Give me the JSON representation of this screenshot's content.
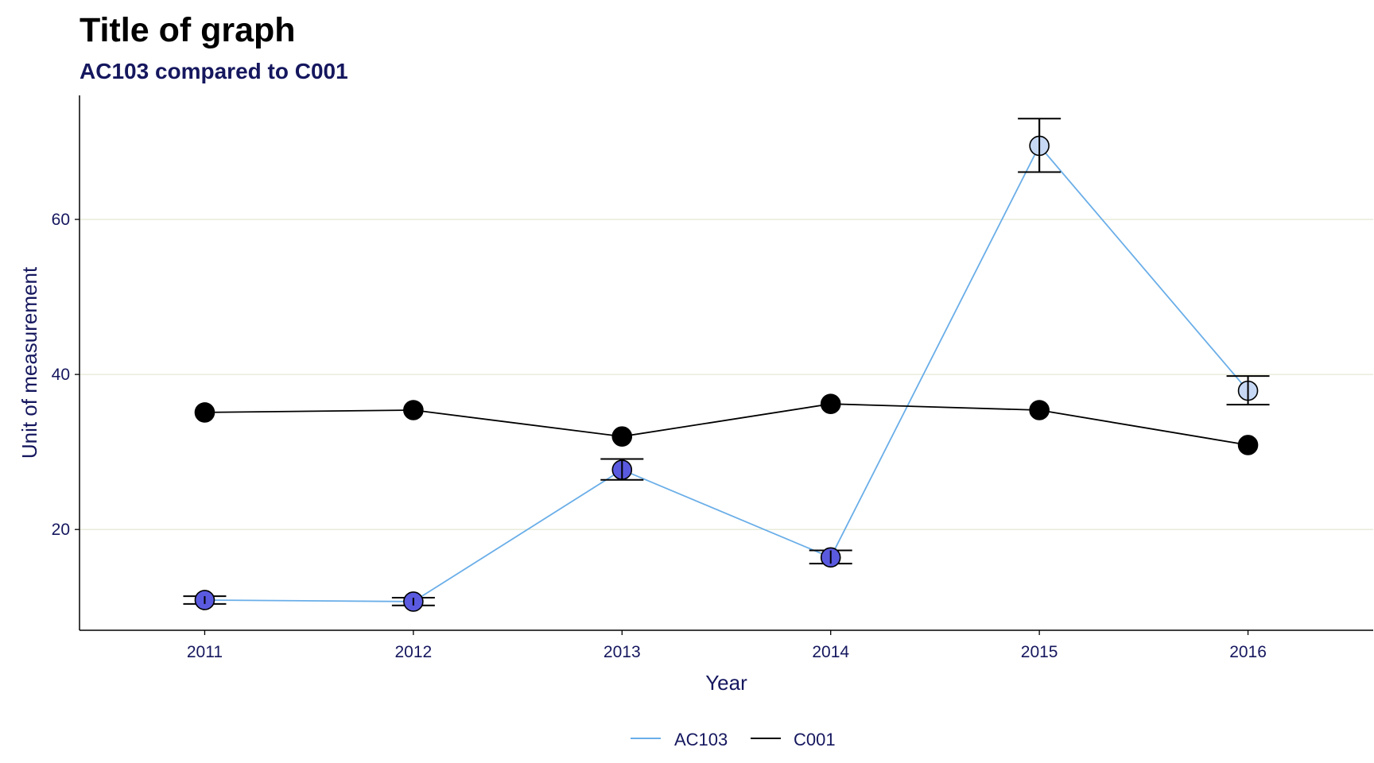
{
  "chart_data": {
    "type": "line",
    "title": "Title of graph",
    "subtitle": "AC103 compared to C001",
    "xlabel": "Year",
    "ylabel": "Unit of measurement",
    "categories": [
      "2011",
      "2012",
      "2013",
      "2014",
      "2015",
      "2016"
    ],
    "x_range": [
      2010.4,
      2016.6
    ],
    "ylim": [
      7,
      76
    ],
    "yticks": [
      20,
      40,
      60
    ],
    "grid": "horizontal major lines",
    "legend_position": "bottom",
    "series": [
      {
        "name": "AC103",
        "line_color": "#6aaee8",
        "values": [
          10.9,
          10.7,
          27.7,
          16.4,
          69.5,
          37.9
        ],
        "error_low": [
          10.4,
          10.2,
          26.4,
          15.6,
          66.1,
          36.1
        ],
        "error_high": [
          11.4,
          11.2,
          29.1,
          17.3,
          73.0,
          39.8
        ],
        "point_colors": [
          "#5a5ae0",
          "#5a5ae0",
          "#5a5ae0",
          "#5a5ae0",
          "#c6d8f4",
          "#c6d8f4"
        ]
      },
      {
        "name": "C001",
        "line_color": "#000000",
        "values": [
          35.1,
          35.4,
          32.0,
          36.2,
          35.4,
          30.9
        ],
        "point_colors": [
          "#000000",
          "#000000",
          "#000000",
          "#000000",
          "#000000",
          "#000000"
        ]
      }
    ],
    "colors": {
      "grid": "#e6ead6",
      "axis": "#000000",
      "text": "#15175e"
    }
  }
}
